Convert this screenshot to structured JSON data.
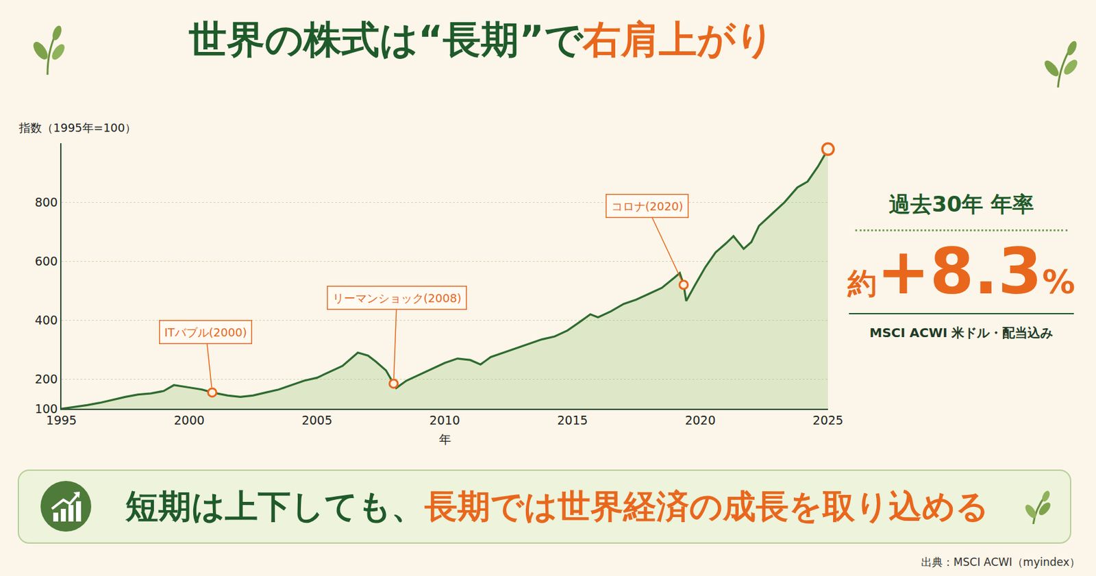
{
  "title": {
    "text": "世界の株式は“長期”で",
    "highlight": "右肩上がり"
  },
  "chart_data": {
    "type": "line",
    "y_label": "指数（1995年=100）",
    "x_label": "年",
    "color": "#2e6b2f",
    "x": [
      1995.0,
      1995.5,
      1996.0,
      1996.5,
      1997.0,
      1997.5,
      1998.0,
      1998.5,
      1999.0,
      1999.4,
      2000.0,
      2000.5,
      2000.9,
      2001.5,
      2002.0,
      2002.5,
      2003.0,
      2003.5,
      2004.0,
      2004.5,
      2005.0,
      2005.5,
      2006.0,
      2006.6,
      2007.0,
      2007.3,
      2007.7,
      2008.0,
      2008.1,
      2008.5,
      2009.0,
      2009.5,
      2010.0,
      2010.5,
      2011.0,
      2011.4,
      2011.8,
      2012.3,
      2012.8,
      2013.3,
      2013.8,
      2014.3,
      2014.8,
      2015.3,
      2015.7,
      2016.0,
      2016.5,
      2017.0,
      2017.5,
      2018.0,
      2018.5,
      2019.0,
      2019.2,
      2019.35,
      2019.45,
      2019.8,
      2020.2,
      2020.6,
      2021.0,
      2021.3,
      2021.7,
      2022.0,
      2022.3,
      2022.8,
      2023.3,
      2023.8,
      2024.2,
      2024.6,
      2025.0
    ],
    "values": [
      100,
      106,
      112,
      120,
      130,
      140,
      148,
      152,
      160,
      180,
      172,
      165,
      155,
      145,
      140,
      145,
      155,
      165,
      180,
      195,
      205,
      225,
      245,
      290,
      280,
      260,
      230,
      185,
      170,
      195,
      215,
      235,
      255,
      270,
      265,
      250,
      275,
      290,
      305,
      320,
      335,
      345,
      365,
      395,
      420,
      410,
      430,
      455,
      470,
      490,
      510,
      545,
      560,
      520,
      465,
      520,
      580,
      630,
      660,
      685,
      642,
      665,
      720,
      760,
      800,
      850,
      870,
      920,
      980
    ],
    "xlim": [
      1995,
      2025
    ],
    "xticks": [
      1995,
      2000,
      2005,
      2010,
      2015,
      2020,
      2025
    ],
    "ylim": [
      100,
      1000
    ],
    "yticks": [
      100,
      200,
      400,
      600,
      800
    ],
    "grid": true,
    "annotations": [
      {
        "text": "ITバブル(2000)",
        "x": 2000.9,
        "y": 155
      },
      {
        "text": "リーマンショック(2008)",
        "x": 2008.0,
        "y": 185
      },
      {
        "text": "コロナ(2020)",
        "x": 2019.35,
        "y": 520
      }
    ]
  },
  "stat": {
    "heading": "過去30年 年率",
    "prefix": "約",
    "value": "+8.3",
    "suffix": "%",
    "note": "MSCI ACWI 米ドル・配当込み"
  },
  "banner": {
    "text": "短期は上下しても、",
    "highlight": "長期では世界経済の成長を取り込める"
  },
  "source": "出典：MSCI ACWI（myindex）"
}
